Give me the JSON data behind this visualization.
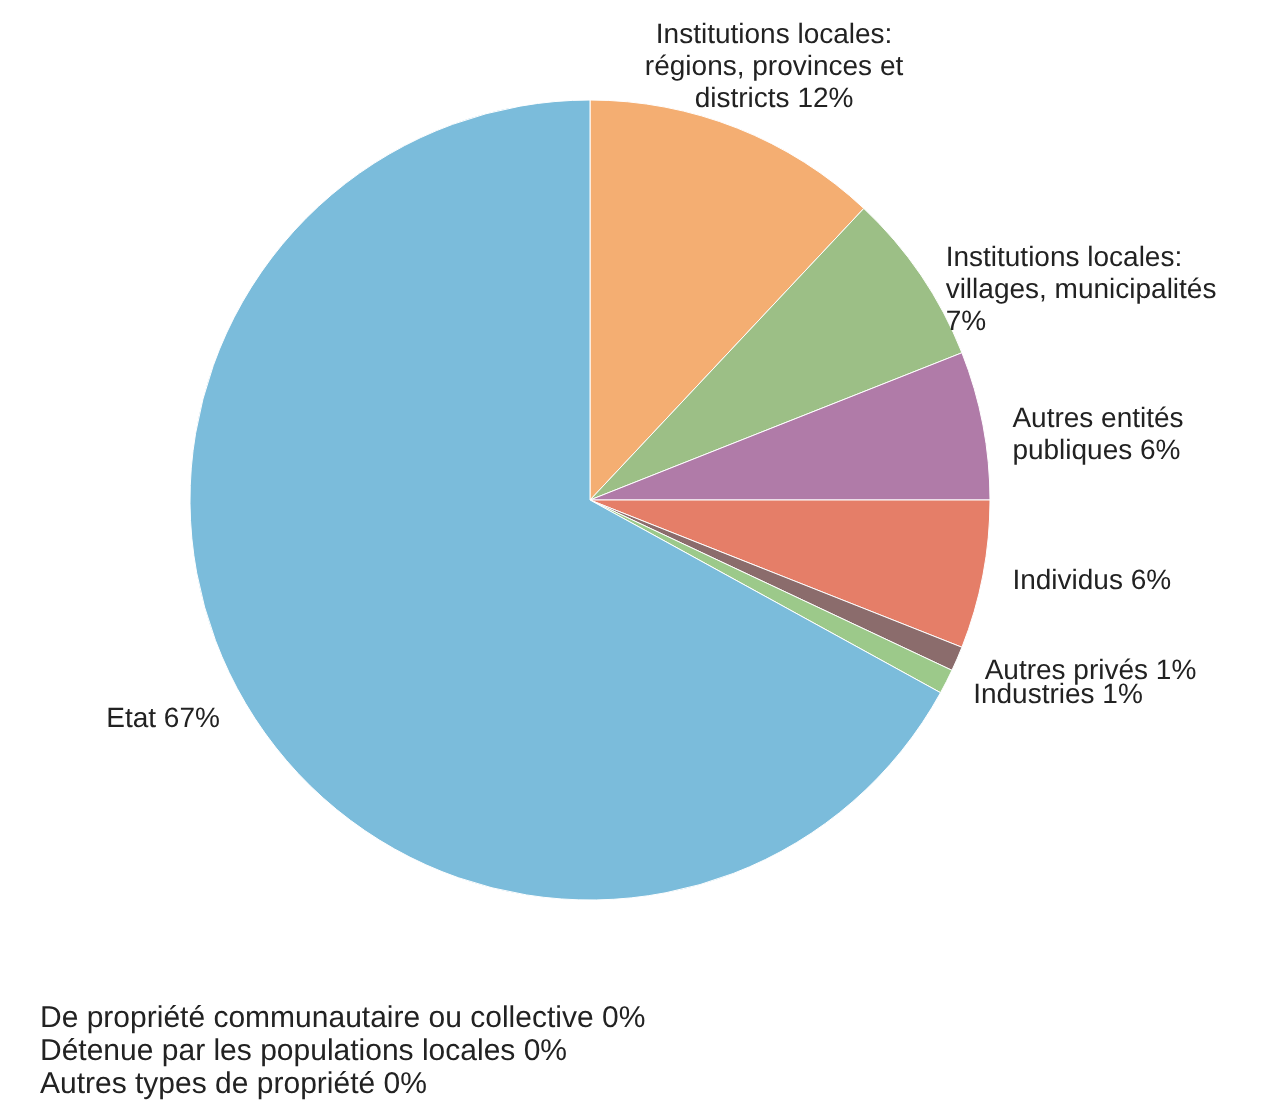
{
  "chart_data": {
    "type": "pie",
    "categories": [
      "Institutions locales: régions, provinces et districts",
      "Institutions locales: villages, municipalités",
      "Autres entités publiques",
      "Individus",
      "Autres privés",
      "Industries",
      "Etat",
      "De propriété communautaire ou collective",
      "Détenue par les populations locales",
      "Autres types de propriété"
    ],
    "values": [
      12,
      7,
      6,
      6,
      1,
      1,
      67,
      0,
      0,
      0
    ],
    "value_labels": [
      "12%",
      "7%",
      "6%",
      "6%",
      "1%",
      "1%",
      "67%",
      "0%",
      "0%",
      "0%"
    ],
    "colors": [
      "#f4ae72",
      "#9cbf86",
      "#b07ba8",
      "#e57e68",
      "#8b6c6c",
      "#9cc98a",
      "#7bbcdb",
      "#7bbcdb",
      "#7bbcdb",
      "#7bbcdb"
    ]
  }
}
